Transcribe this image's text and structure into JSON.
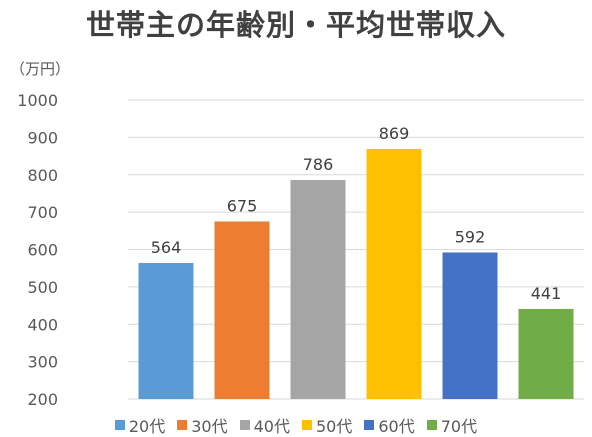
{
  "chart_data": {
    "type": "bar",
    "title": "世帯主の年齢別・平均世帯収入",
    "ylabel": "（万円）",
    "xlabel": "",
    "ylim": [
      200,
      1000
    ],
    "yticks": [
      200,
      300,
      400,
      500,
      600,
      700,
      800,
      900,
      1000
    ],
    "grid": true,
    "legend": "bottom",
    "categories": [
      "20代",
      "30代",
      "40代",
      "50代",
      "60代",
      "70代"
    ],
    "values": [
      564,
      675,
      786,
      869,
      592,
      441
    ],
    "colors": [
      "#5B9BD5",
      "#ED7D31",
      "#A5A5A5",
      "#FFC000",
      "#4472C4",
      "#70AD47"
    ]
  }
}
